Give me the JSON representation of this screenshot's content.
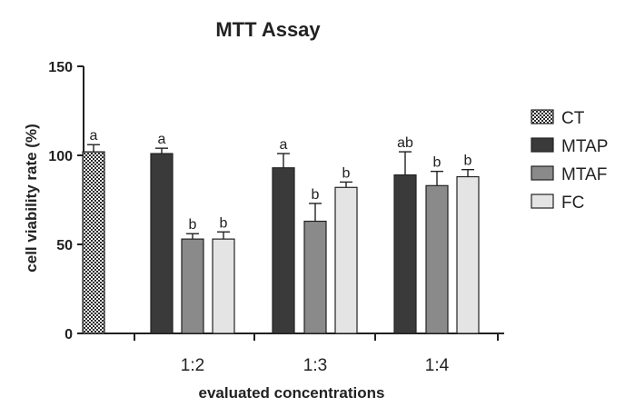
{
  "chart_data": {
    "type": "bar",
    "title": "MTT Assay",
    "xlabel": "evaluated concentrations",
    "ylabel": "cell viability rate (%)",
    "ylim": [
      0,
      150
    ],
    "yticks": [
      0,
      50,
      100,
      150
    ],
    "grid": false,
    "legend_position": "right",
    "categories": [
      "",
      "1:2",
      "1:3",
      "1:4"
    ],
    "series": [
      {
        "name": "CT",
        "color": "#3a3a3a",
        "pattern": "checker",
        "values": [
          102,
          null,
          null,
          null
        ],
        "errors": [
          4,
          null,
          null,
          null
        ],
        "labels": [
          "a",
          null,
          null,
          null
        ]
      },
      {
        "name": "MTAP",
        "color": "#3a3a3a",
        "values": [
          null,
          101,
          93,
          89
        ],
        "errors": [
          null,
          3,
          8,
          13
        ],
        "labels": [
          null,
          "a",
          "a",
          "ab"
        ]
      },
      {
        "name": "MTAF",
        "color": "#8a8a8a",
        "values": [
          null,
          53,
          63,
          83
        ],
        "errors": [
          null,
          3,
          10,
          8
        ],
        "labels": [
          null,
          "b",
          "b",
          "b"
        ]
      },
      {
        "name": "FC",
        "color": "#e4e4e4",
        "values": [
          null,
          53,
          82,
          88
        ],
        "errors": [
          null,
          4,
          3,
          4
        ],
        "labels": [
          null,
          "b",
          "b",
          "b"
        ]
      }
    ]
  }
}
